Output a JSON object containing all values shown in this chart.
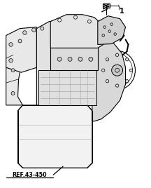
{
  "background_color": "#ffffff",
  "label_1": "1",
  "ref_label": "REF.43-450",
  "fig_width": 2.16,
  "fig_height": 2.68,
  "dpi": 100
}
